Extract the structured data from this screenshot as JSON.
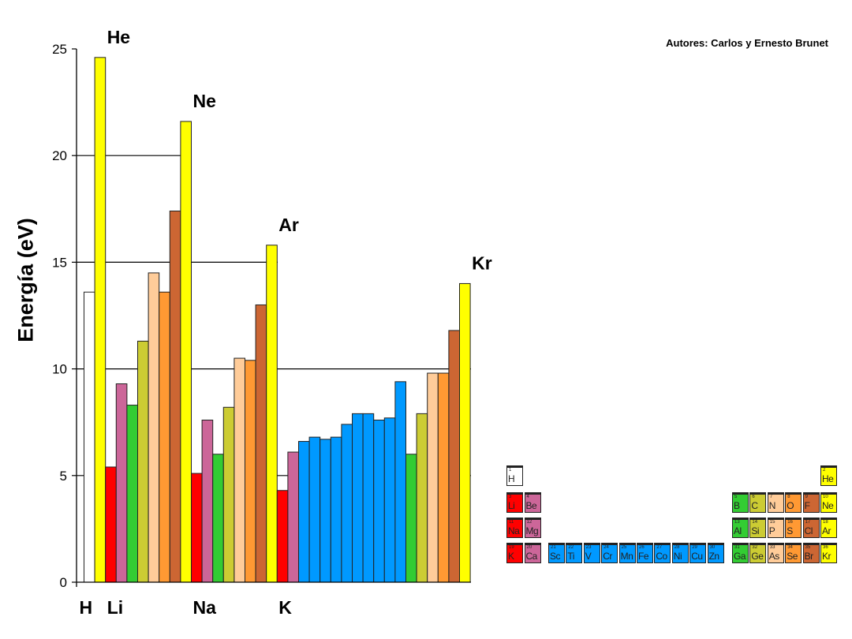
{
  "credit": "Autores: Carlos y Ernesto Brunet",
  "chart_data": {
    "type": "bar",
    "title": "",
    "xlabel": "",
    "ylabel": "Energía (eV)",
    "ylim": [
      0,
      25
    ],
    "yticks": [
      "0",
      "5",
      "10",
      "15",
      "20",
      "25"
    ],
    "categories": [
      "H",
      "He",
      "Li",
      "Be",
      "B",
      "C",
      "N",
      "O",
      "F",
      "Ne",
      "Na",
      "Mg",
      "Al",
      "Si",
      "P",
      "S",
      "Cl",
      "Ar",
      "K",
      "Ca",
      "Sc",
      "Ti",
      "V",
      "Cr",
      "Mn",
      "Fe",
      "Co",
      "Ni",
      "Cu",
      "Zn",
      "Ga",
      "Ge",
      "As",
      "Se",
      "Br",
      "Kr"
    ],
    "values": [
      13.6,
      24.6,
      5.4,
      9.3,
      8.3,
      11.3,
      14.5,
      13.6,
      17.4,
      21.6,
      5.1,
      7.6,
      6.0,
      8.2,
      10.5,
      10.4,
      13.0,
      15.8,
      4.3,
      6.1,
      6.6,
      6.8,
      6.7,
      6.8,
      7.4,
      7.9,
      7.9,
      7.6,
      7.7,
      9.4,
      6.0,
      7.9,
      9.8,
      9.8,
      11.8,
      14.0
    ],
    "groups": [
      "h",
      "noble",
      "alkali",
      "alkearth",
      "g13",
      "g14",
      "g15",
      "g16",
      "g17",
      "noble",
      "alkali",
      "alkearth",
      "g13",
      "g14",
      "g15",
      "g16",
      "g17",
      "noble",
      "alkali",
      "alkearth",
      "trans",
      "trans",
      "trans",
      "trans",
      "trans",
      "trans",
      "trans",
      "trans",
      "trans",
      "trans",
      "g13",
      "g14",
      "g15",
      "g16",
      "g17",
      "noble"
    ],
    "x_labels": [
      {
        "label": "H",
        "index": 0
      },
      {
        "label": "Li",
        "index": 2
      },
      {
        "label": "Na",
        "index": 10
      },
      {
        "label": "K",
        "index": 18
      }
    ],
    "annotations": [
      {
        "label": "He",
        "index": 1
      },
      {
        "label": "Ne",
        "index": 9
      },
      {
        "label": "Ar",
        "index": 17
      },
      {
        "label": "Kr",
        "index": 35
      }
    ],
    "grid": true
  },
  "colors": {
    "h": "#ffffff",
    "noble": "#ffff00",
    "alkali": "#ff0000",
    "alkearth": "#cc6699",
    "trans": "#0099ff",
    "g13": "#33cc33",
    "g14": "#cccc33",
    "g15": "#ffcc99",
    "g16": "#ff9933",
    "g17": "#cc6633"
  },
  "periodic_table": [
    {
      "s": "H",
      "n": "1",
      "row": 0,
      "col": 0
    },
    {
      "s": "He",
      "n": "2",
      "row": 0,
      "col": 17
    },
    {
      "s": "Li",
      "n": "3",
      "row": 1,
      "col": 0
    },
    {
      "s": "Be",
      "n": "4",
      "row": 1,
      "col": 1
    },
    {
      "s": "B",
      "n": "5",
      "row": 1,
      "col": 12
    },
    {
      "s": "C",
      "n": "6",
      "row": 1,
      "col": 13
    },
    {
      "s": "N",
      "n": "7",
      "row": 1,
      "col": 14
    },
    {
      "s": "O",
      "n": "8",
      "row": 1,
      "col": 15
    },
    {
      "s": "F",
      "n": "9",
      "row": 1,
      "col": 16
    },
    {
      "s": "Ne",
      "n": "10",
      "row": 1,
      "col": 17
    },
    {
      "s": "Na",
      "n": "11",
      "row": 2,
      "col": 0
    },
    {
      "s": "Mg",
      "n": "12",
      "row": 2,
      "col": 1
    },
    {
      "s": "Al",
      "n": "13",
      "row": 2,
      "col": 12
    },
    {
      "s": "Si",
      "n": "14",
      "row": 2,
      "col": 13
    },
    {
      "s": "P",
      "n": "15",
      "row": 2,
      "col": 14
    },
    {
      "s": "S",
      "n": "16",
      "row": 2,
      "col": 15
    },
    {
      "s": "Cl",
      "n": "17",
      "row": 2,
      "col": 16
    },
    {
      "s": "Ar",
      "n": "18",
      "row": 2,
      "col": 17
    },
    {
      "s": "K",
      "n": "19",
      "row": 3,
      "col": 0
    },
    {
      "s": "Ca",
      "n": "20",
      "row": 3,
      "col": 1
    },
    {
      "s": "Sc",
      "n": "21",
      "row": 3,
      "col": 2
    },
    {
      "s": "Ti",
      "n": "22",
      "row": 3,
      "col": 3
    },
    {
      "s": "V",
      "n": "23",
      "row": 3,
      "col": 4
    },
    {
      "s": "Cr",
      "n": "24",
      "row": 3,
      "col": 5
    },
    {
      "s": "Mn",
      "n": "25",
      "row": 3,
      "col": 6
    },
    {
      "s": "Fe",
      "n": "26",
      "row": 3,
      "col": 7
    },
    {
      "s": "Co",
      "n": "27",
      "row": 3,
      "col": 8
    },
    {
      "s": "Ni",
      "n": "28",
      "row": 3,
      "col": 9
    },
    {
      "s": "Cu",
      "n": "29",
      "row": 3,
      "col": 10
    },
    {
      "s": "Zn",
      "n": "30",
      "row": 3,
      "col": 11
    },
    {
      "s": "Ga",
      "n": "31",
      "row": 3,
      "col": 12
    },
    {
      "s": "Ge",
      "n": "32",
      "row": 3,
      "col": 13
    },
    {
      "s": "As",
      "n": "33",
      "row": 3,
      "col": 14
    },
    {
      "s": "Se",
      "n": "34",
      "row": 3,
      "col": 15
    },
    {
      "s": "Br",
      "n": "35",
      "row": 3,
      "col": 16
    },
    {
      "s": "Kr",
      "n": "36",
      "row": 3,
      "col": 17
    }
  ]
}
